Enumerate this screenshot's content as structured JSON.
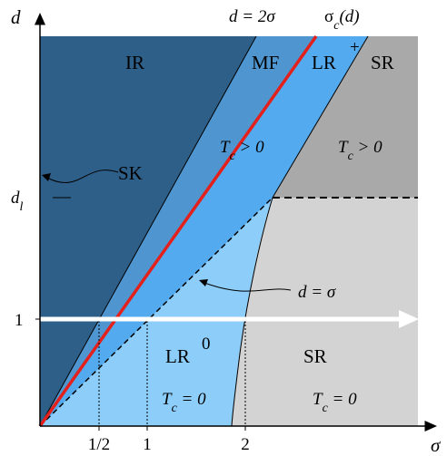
{
  "axes": {
    "x_label": "σ",
    "y_label": "d",
    "x_ticks": [
      "1/2",
      "1",
      "2"
    ],
    "y_ticks": [
      "d",
      "1"
    ],
    "y_tick_dl_sub": "l"
  },
  "top_labels": {
    "d2sigma": "d = 2σ",
    "sigma_c": "σ",
    "sigma_c_sub": "c",
    "sigma_c_arg": "(d)"
  },
  "regions": {
    "ir": "IR",
    "mf": "MF",
    "lr_plus": "LR",
    "lr_plus_sup": "+",
    "sr_top": "SR",
    "lr_zero": "LR",
    "lr_zero_sup": "0",
    "sr_bottom": "SR"
  },
  "annotations": {
    "tc_upper_mid_T": "T",
    "tc_upper_mid_rest": " > 0",
    "tc_upper_right_T": "T",
    "tc_upper_right_rest": " > 0",
    "tc_lower_mid_T": "T",
    "tc_lower_mid_rest": " = 0",
    "tc_lower_right_T": "T",
    "tc_lower_right_rest": " = 0",
    "c_sub": "c",
    "sk": "SK",
    "d_eq_sigma": "d = σ"
  },
  "colors": {
    "ir": "#2e5f88",
    "mf": "#4f95cf",
    "lr_plus": "#53aaee",
    "lr_zero": "#8ccdf9",
    "sr_top": "#a9a9a9",
    "sr_bottom": "#d3d3d3",
    "red_line": "#e3201b",
    "arrow": "#ffffff"
  }
}
